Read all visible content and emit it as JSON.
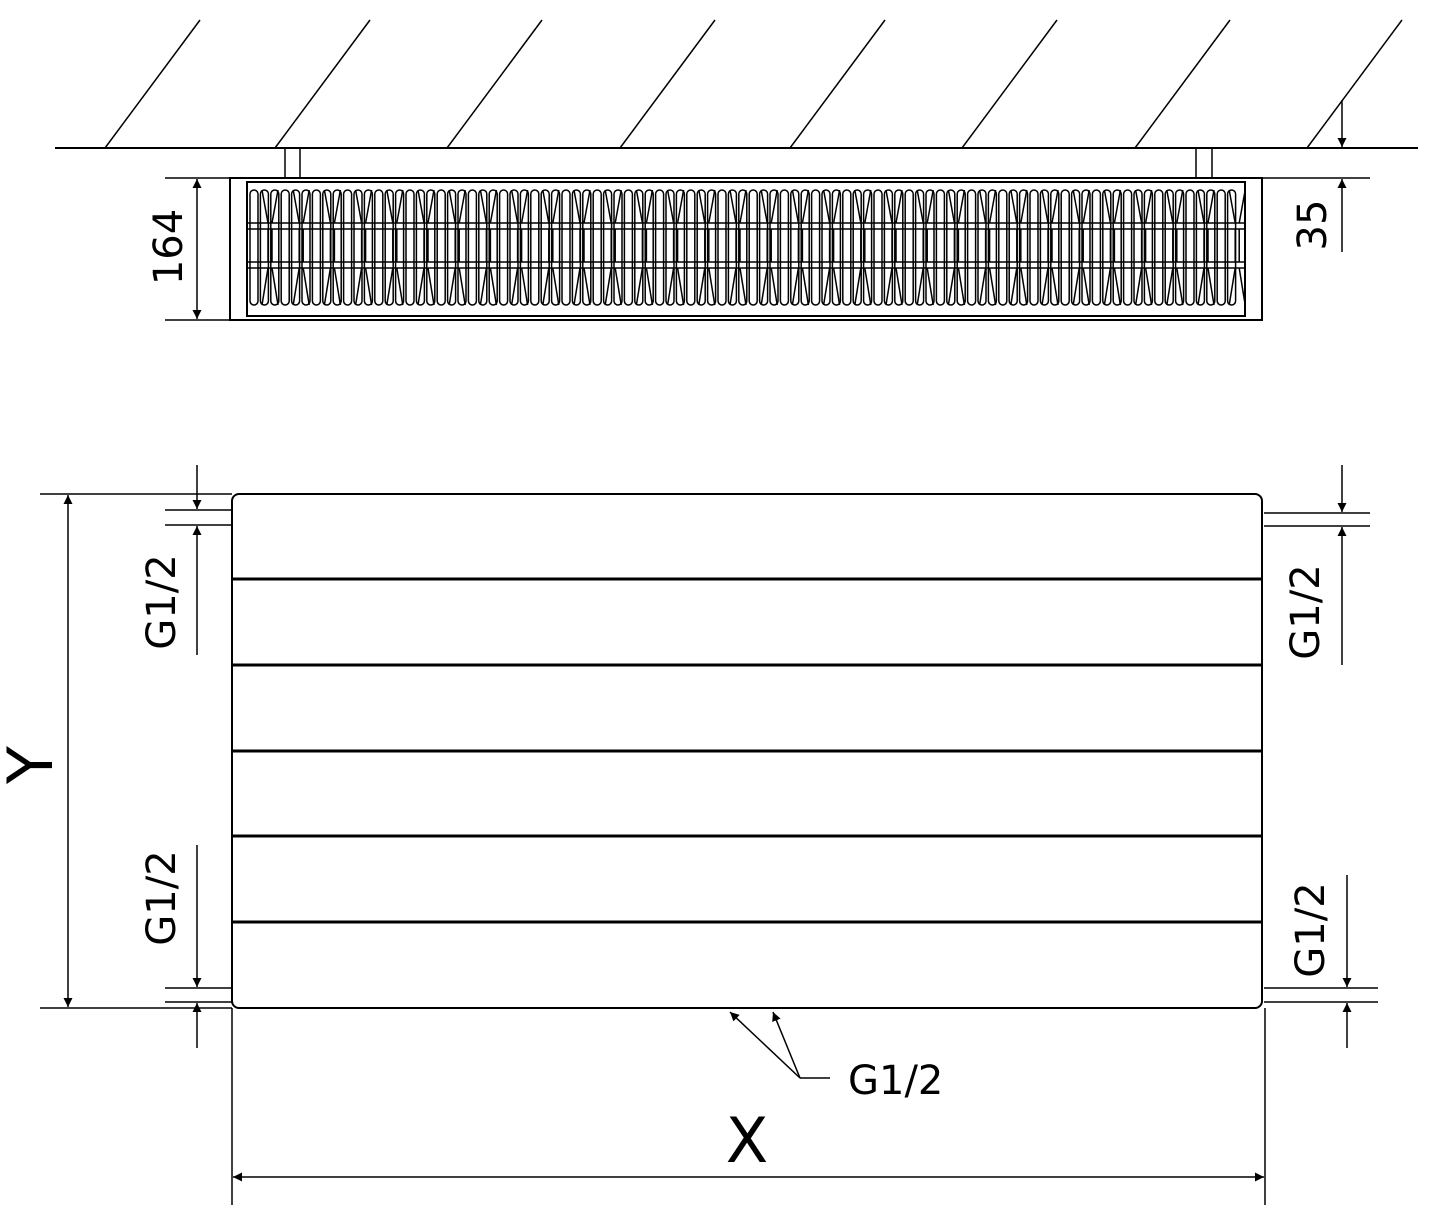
{
  "top_view": {
    "height_label": "164",
    "wall_gap_label": "35"
  },
  "front_view": {
    "width_label": "X",
    "height_label": "Y",
    "connection_left_top": "G1/2",
    "connection_left_bottom": "G1/2",
    "connection_right_top": "G1/2",
    "connection_right_bottom": "G1/2",
    "connection_bottom": "G1/2"
  },
  "colors": {
    "line": "#000000",
    "background": "#ffffff"
  }
}
